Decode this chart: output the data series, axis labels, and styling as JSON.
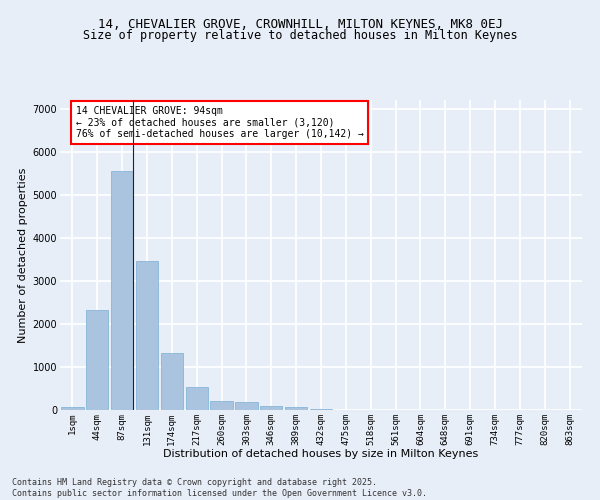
{
  "title_line1": "14, CHEVALIER GROVE, CROWNHILL, MILTON KEYNES, MK8 0EJ",
  "title_line2": "Size of property relative to detached houses in Milton Keynes",
  "xlabel": "Distribution of detached houses by size in Milton Keynes",
  "ylabel": "Number of detached properties",
  "categories": [
    "1sqm",
    "44sqm",
    "87sqm",
    "131sqm",
    "174sqm",
    "217sqm",
    "260sqm",
    "303sqm",
    "346sqm",
    "389sqm",
    "432sqm",
    "475sqm",
    "518sqm",
    "561sqm",
    "604sqm",
    "648sqm",
    "691sqm",
    "734sqm",
    "777sqm",
    "820sqm",
    "863sqm"
  ],
  "values": [
    70,
    2320,
    5560,
    3450,
    1320,
    530,
    220,
    190,
    100,
    60,
    30,
    0,
    0,
    0,
    0,
    0,
    0,
    0,
    0,
    0,
    0
  ],
  "bar_color": "#aac4e0",
  "bar_edge_color": "#7aafd4",
  "vline_x_index": 2,
  "vline_color": "#222222",
  "annotation_text": "14 CHEVALIER GROVE: 94sqm\n← 23% of detached houses are smaller (3,120)\n76% of semi-detached houses are larger (10,142) →",
  "annotation_box_color": "white",
  "annotation_box_edge": "red",
  "ylim": [
    0,
    7200
  ],
  "yticks": [
    0,
    1000,
    2000,
    3000,
    4000,
    5000,
    6000,
    7000
  ],
  "bg_color": "#e8eef8",
  "plot_bg_color": "#e8eef8",
  "grid_color": "white",
  "footer_line1": "Contains HM Land Registry data © Crown copyright and database right 2025.",
  "footer_line2": "Contains public sector information licensed under the Open Government Licence v3.0.",
  "title_fontsize": 9,
  "subtitle_fontsize": 8.5,
  "axis_label_fontsize": 8,
  "tick_fontsize": 6.5,
  "annotation_fontsize": 7,
  "footer_fontsize": 6
}
